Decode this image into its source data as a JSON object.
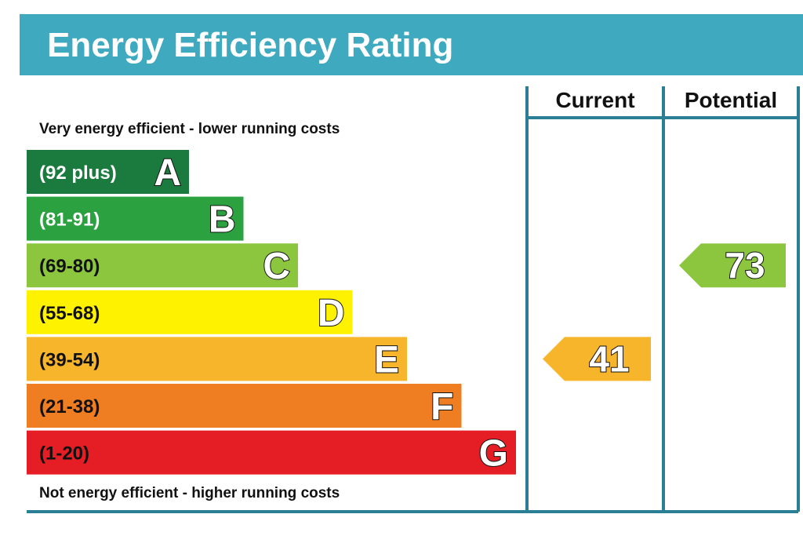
{
  "chart_data": {
    "type": "bar",
    "title": "Energy Efficiency Rating",
    "top_caption": "Very energy efficient - lower running costs",
    "bottom_caption": "Not energy efficient - higher running costs",
    "columns": [
      "Current",
      "Potential"
    ],
    "bands": [
      {
        "letter": "A",
        "range": "(92 plus)",
        "color": "#1b7a3e",
        "label_color": "#ffffff"
      },
      {
        "letter": "B",
        "range": "(81-91)",
        "color": "#2ba140",
        "label_color": "#ffffff"
      },
      {
        "letter": "C",
        "range": "(69-80)",
        "color": "#8cc63f",
        "label_color": "#111111"
      },
      {
        "letter": "D",
        "range": "(55-68)",
        "color": "#fff200",
        "label_color": "#111111"
      },
      {
        "letter": "E",
        "range": "(39-54)",
        "color": "#f7b52c",
        "label_color": "#111111"
      },
      {
        "letter": "F",
        "range": "(21-38)",
        "color": "#ef7d22",
        "label_color": "#111111"
      },
      {
        "letter": "G",
        "range": "(1-20)",
        "color": "#e51e25",
        "label_color": "#111111"
      }
    ],
    "ratings": [
      {
        "column": "Current",
        "value": 41,
        "band": "E",
        "color": "#f7b52c"
      },
      {
        "column": "Potential",
        "value": 73,
        "band": "C",
        "color": "#8cc63f"
      }
    ]
  },
  "colors": {
    "header_bg": "#3fa9c0",
    "frame": "#2a7f95"
  }
}
